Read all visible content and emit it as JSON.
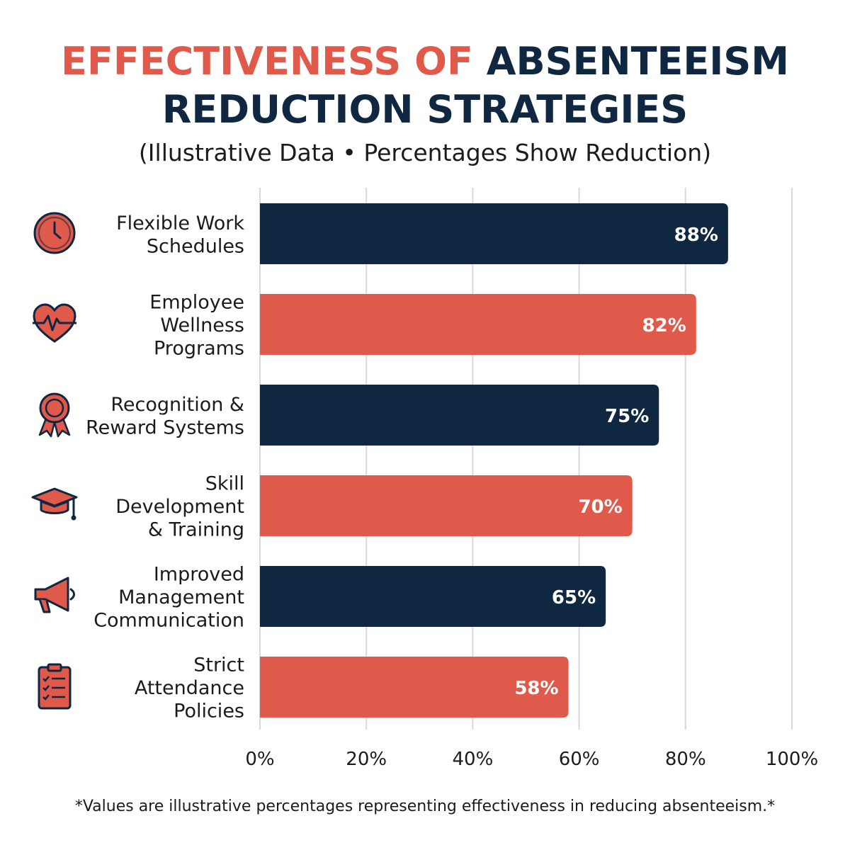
{
  "title": {
    "line1_accent": "EFFECTIVENESS OF",
    "line1_dark": "ABSENTEEISM",
    "line2": "REDUCTION STRATEGIES"
  },
  "subtitle": "(Illustrative Data • Percentages Show Reduction)",
  "footnote": "*Values are illustrative percentages representing effectiveness in reducing absenteeism.*",
  "colors": {
    "navy": "#0f2741",
    "coral": "#e05a4b",
    "grid": "#d9d9d9"
  },
  "chart_data": {
    "type": "bar",
    "orientation": "horizontal",
    "title": "EFFECTIVENESS OF ABSENTEEISM REDUCTION STRATEGIES",
    "subtitle": "(Illustrative Data • Percentages Show Reduction)",
    "categories": [
      [
        "Flexible Work",
        "Schedules"
      ],
      [
        "Employee",
        "Wellness",
        "Programs"
      ],
      [
        "Recognition &",
        "Reward Systems"
      ],
      [
        "Skill",
        "Development",
        "& Training"
      ],
      [
        "Improved",
        "Management",
        "Communication"
      ],
      [
        "Strict",
        "Attendance",
        "Policies"
      ]
    ],
    "values": [
      88,
      82,
      75,
      70,
      65,
      58
    ],
    "value_labels": [
      "88%",
      "82%",
      "75%",
      "70%",
      "65%",
      "58%"
    ],
    "bar_colors": [
      "#0f2741",
      "#e05a4b",
      "#0f2741",
      "#e05a4b",
      "#0f2741",
      "#e05a4b"
    ],
    "icons": [
      "clock-icon",
      "heart-pulse-icon",
      "award-ribbon-icon",
      "graduation-cap-icon",
      "megaphone-icon",
      "clipboard-checklist-icon"
    ],
    "xlim": [
      0,
      100
    ],
    "xticks": [
      0,
      20,
      40,
      60,
      80,
      100
    ],
    "xtick_labels": [
      "0%",
      "20%",
      "40%",
      "60%",
      "80%",
      "100%"
    ],
    "grid": true
  }
}
